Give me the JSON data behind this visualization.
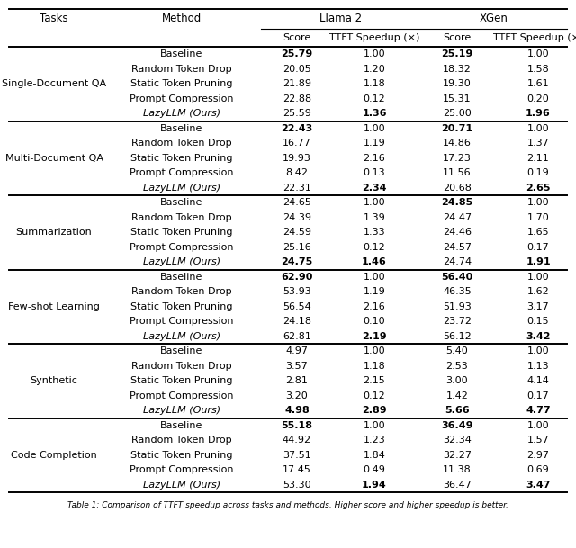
{
  "col_headers_top": [
    "Tasks",
    "Method",
    "Llama 2",
    "XGen"
  ],
  "col_headers_sub": [
    "Score",
    "TTFT Speedup (×)",
    "Score",
    "TTFT Speedup (×)"
  ],
  "rows": [
    {
      "task": "Single-Document QA",
      "data": [
        {
          "method": "Baseline",
          "llama2_score": "25.79",
          "llama2_ttft": "1.00",
          "xgen_score": "25.19",
          "xgen_ttft": "1.00",
          "llama2_score_bold": true,
          "llama2_ttft_bold": false,
          "xgen_score_bold": true,
          "xgen_ttft_bold": false,
          "method_italic": false
        },
        {
          "method": "Random Token Drop",
          "llama2_score": "20.05",
          "llama2_ttft": "1.20",
          "xgen_score": "18.32",
          "xgen_ttft": "1.58",
          "llama2_score_bold": false,
          "llama2_ttft_bold": false,
          "xgen_score_bold": false,
          "xgen_ttft_bold": false,
          "method_italic": false
        },
        {
          "method": "Static Token Pruning",
          "llama2_score": "21.89",
          "llama2_ttft": "1.18",
          "xgen_score": "19.30",
          "xgen_ttft": "1.61",
          "llama2_score_bold": false,
          "llama2_ttft_bold": false,
          "xgen_score_bold": false,
          "xgen_ttft_bold": false,
          "method_italic": false
        },
        {
          "method": "Prompt Compression",
          "llama2_score": "22.88",
          "llama2_ttft": "0.12",
          "xgen_score": "15.31",
          "xgen_ttft": "0.20",
          "llama2_score_bold": false,
          "llama2_ttft_bold": false,
          "xgen_score_bold": false,
          "xgen_ttft_bold": false,
          "method_italic": false
        },
        {
          "method": "LazyLLM (Ours)",
          "llama2_score": "25.59",
          "llama2_ttft": "1.36",
          "xgen_score": "25.00",
          "xgen_ttft": "1.96",
          "llama2_score_bold": false,
          "llama2_ttft_bold": true,
          "xgen_score_bold": false,
          "xgen_ttft_bold": true,
          "method_italic": true
        }
      ]
    },
    {
      "task": "Multi-Document QA",
      "data": [
        {
          "method": "Baseline",
          "llama2_score": "22.43",
          "llama2_ttft": "1.00",
          "xgen_score": "20.71",
          "xgen_ttft": "1.00",
          "llama2_score_bold": true,
          "llama2_ttft_bold": false,
          "xgen_score_bold": true,
          "xgen_ttft_bold": false,
          "method_italic": false
        },
        {
          "method": "Random Token Drop",
          "llama2_score": "16.77",
          "llama2_ttft": "1.19",
          "xgen_score": "14.86",
          "xgen_ttft": "1.37",
          "llama2_score_bold": false,
          "llama2_ttft_bold": false,
          "xgen_score_bold": false,
          "xgen_ttft_bold": false,
          "method_italic": false
        },
        {
          "method": "Static Token Pruning",
          "llama2_score": "19.93",
          "llama2_ttft": "2.16",
          "xgen_score": "17.23",
          "xgen_ttft": "2.11",
          "llama2_score_bold": false,
          "llama2_ttft_bold": false,
          "xgen_score_bold": false,
          "xgen_ttft_bold": false,
          "method_italic": false
        },
        {
          "method": "Prompt Compression",
          "llama2_score": "8.42",
          "llama2_ttft": "0.13",
          "xgen_score": "11.56",
          "xgen_ttft": "0.19",
          "llama2_score_bold": false,
          "llama2_ttft_bold": false,
          "xgen_score_bold": false,
          "xgen_ttft_bold": false,
          "method_italic": false
        },
        {
          "method": "LazyLLM (Ours)",
          "llama2_score": "22.31",
          "llama2_ttft": "2.34",
          "xgen_score": "20.68",
          "xgen_ttft": "2.65",
          "llama2_score_bold": false,
          "llama2_ttft_bold": true,
          "xgen_score_bold": false,
          "xgen_ttft_bold": true,
          "method_italic": true
        }
      ]
    },
    {
      "task": "Summarization",
      "data": [
        {
          "method": "Baseline",
          "llama2_score": "24.65",
          "llama2_ttft": "1.00",
          "xgen_score": "24.85",
          "xgen_ttft": "1.00",
          "llama2_score_bold": false,
          "llama2_ttft_bold": false,
          "xgen_score_bold": true,
          "xgen_ttft_bold": false,
          "method_italic": false
        },
        {
          "method": "Random Token Drop",
          "llama2_score": "24.39",
          "llama2_ttft": "1.39",
          "xgen_score": "24.47",
          "xgen_ttft": "1.70",
          "llama2_score_bold": false,
          "llama2_ttft_bold": false,
          "xgen_score_bold": false,
          "xgen_ttft_bold": false,
          "method_italic": false
        },
        {
          "method": "Static Token Pruning",
          "llama2_score": "24.59",
          "llama2_ttft": "1.33",
          "xgen_score": "24.46",
          "xgen_ttft": "1.65",
          "llama2_score_bold": false,
          "llama2_ttft_bold": false,
          "xgen_score_bold": false,
          "xgen_ttft_bold": false,
          "method_italic": false
        },
        {
          "method": "Prompt Compression",
          "llama2_score": "25.16",
          "llama2_ttft": "0.12",
          "xgen_score": "24.57",
          "xgen_ttft": "0.17",
          "llama2_score_bold": false,
          "llama2_ttft_bold": false,
          "xgen_score_bold": false,
          "xgen_ttft_bold": false,
          "method_italic": false
        },
        {
          "method": "LazyLLM (Ours)",
          "llama2_score": "24.75",
          "llama2_ttft": "1.46",
          "xgen_score": "24.74",
          "xgen_ttft": "1.91",
          "llama2_score_bold": true,
          "llama2_ttft_bold": true,
          "xgen_score_bold": false,
          "xgen_ttft_bold": true,
          "method_italic": true
        }
      ]
    },
    {
      "task": "Few-shot Learning",
      "data": [
        {
          "method": "Baseline",
          "llama2_score": "62.90",
          "llama2_ttft": "1.00",
          "xgen_score": "56.40",
          "xgen_ttft": "1.00",
          "llama2_score_bold": true,
          "llama2_ttft_bold": false,
          "xgen_score_bold": true,
          "xgen_ttft_bold": false,
          "method_italic": false
        },
        {
          "method": "Random Token Drop",
          "llama2_score": "53.93",
          "llama2_ttft": "1.19",
          "xgen_score": "46.35",
          "xgen_ttft": "1.62",
          "llama2_score_bold": false,
          "llama2_ttft_bold": false,
          "xgen_score_bold": false,
          "xgen_ttft_bold": false,
          "method_italic": false
        },
        {
          "method": "Static Token Pruning",
          "llama2_score": "56.54",
          "llama2_ttft": "2.16",
          "xgen_score": "51.93",
          "xgen_ttft": "3.17",
          "llama2_score_bold": false,
          "llama2_ttft_bold": false,
          "xgen_score_bold": false,
          "xgen_ttft_bold": false,
          "method_italic": false
        },
        {
          "method": "Prompt Compression",
          "llama2_score": "24.18",
          "llama2_ttft": "0.10",
          "xgen_score": "23.72",
          "xgen_ttft": "0.15",
          "llama2_score_bold": false,
          "llama2_ttft_bold": false,
          "xgen_score_bold": false,
          "xgen_ttft_bold": false,
          "method_italic": false
        },
        {
          "method": "LazyLLM (Ours)",
          "llama2_score": "62.81",
          "llama2_ttft": "2.19",
          "xgen_score": "56.12",
          "xgen_ttft": "3.42",
          "llama2_score_bold": false,
          "llama2_ttft_bold": true,
          "xgen_score_bold": false,
          "xgen_ttft_bold": true,
          "method_italic": true
        }
      ]
    },
    {
      "task": "Synthetic",
      "data": [
        {
          "method": "Baseline",
          "llama2_score": "4.97",
          "llama2_ttft": "1.00",
          "xgen_score": "5.40",
          "xgen_ttft": "1.00",
          "llama2_score_bold": false,
          "llama2_ttft_bold": false,
          "xgen_score_bold": false,
          "xgen_ttft_bold": false,
          "method_italic": false
        },
        {
          "method": "Random Token Drop",
          "llama2_score": "3.57",
          "llama2_ttft": "1.18",
          "xgen_score": "2.53",
          "xgen_ttft": "1.13",
          "llama2_score_bold": false,
          "llama2_ttft_bold": false,
          "xgen_score_bold": false,
          "xgen_ttft_bold": false,
          "method_italic": false
        },
        {
          "method": "Static Token Pruning",
          "llama2_score": "2.81",
          "llama2_ttft": "2.15",
          "xgen_score": "3.00",
          "xgen_ttft": "4.14",
          "llama2_score_bold": false,
          "llama2_ttft_bold": false,
          "xgen_score_bold": false,
          "xgen_ttft_bold": false,
          "method_italic": false
        },
        {
          "method": "Prompt Compression",
          "llama2_score": "3.20",
          "llama2_ttft": "0.12",
          "xgen_score": "1.42",
          "xgen_ttft": "0.17",
          "llama2_score_bold": false,
          "llama2_ttft_bold": false,
          "xgen_score_bold": false,
          "xgen_ttft_bold": false,
          "method_italic": false
        },
        {
          "method": "LazyLLM (Ours)",
          "llama2_score": "4.98",
          "llama2_ttft": "2.89",
          "xgen_score": "5.66",
          "xgen_ttft": "4.77",
          "llama2_score_bold": true,
          "llama2_ttft_bold": true,
          "xgen_score_bold": true,
          "xgen_ttft_bold": true,
          "method_italic": true
        }
      ]
    },
    {
      "task": "Code Completion",
      "data": [
        {
          "method": "Baseline",
          "llama2_score": "55.18",
          "llama2_ttft": "1.00",
          "xgen_score": "36.49",
          "xgen_ttft": "1.00",
          "llama2_score_bold": true,
          "llama2_ttft_bold": false,
          "xgen_score_bold": true,
          "xgen_ttft_bold": false,
          "method_italic": false
        },
        {
          "method": "Random Token Drop",
          "llama2_score": "44.92",
          "llama2_ttft": "1.23",
          "xgen_score": "32.34",
          "xgen_ttft": "1.57",
          "llama2_score_bold": false,
          "llama2_ttft_bold": false,
          "xgen_score_bold": false,
          "xgen_ttft_bold": false,
          "method_italic": false
        },
        {
          "method": "Static Token Pruning",
          "llama2_score": "37.51",
          "llama2_ttft": "1.84",
          "xgen_score": "32.27",
          "xgen_ttft": "2.97",
          "llama2_score_bold": false,
          "llama2_ttft_bold": false,
          "xgen_score_bold": false,
          "xgen_ttft_bold": false,
          "method_italic": false
        },
        {
          "method": "Prompt Compression",
          "llama2_score": "17.45",
          "llama2_ttft": "0.49",
          "xgen_score": "11.38",
          "xgen_ttft": "0.69",
          "llama2_score_bold": false,
          "llama2_ttft_bold": false,
          "xgen_score_bold": false,
          "xgen_ttft_bold": false,
          "method_italic": false
        },
        {
          "method": "LazyLLM (Ours)",
          "llama2_score": "53.30",
          "llama2_ttft": "1.94",
          "xgen_score": "36.47",
          "xgen_ttft": "3.47",
          "llama2_score_bold": false,
          "llama2_ttft_bold": true,
          "xgen_score_bold": false,
          "xgen_ttft_bold": true,
          "method_italic": true
        }
      ]
    }
  ],
  "caption": "Table 1: Comparison of TTFT speedup across tasks and methods. Higher score and higher speedup is better.",
  "bg_color": "#ffffff",
  "text_color": "#000000",
  "font_size": 8.0,
  "header_font_size": 8.5,
  "caption_font_size": 6.5
}
